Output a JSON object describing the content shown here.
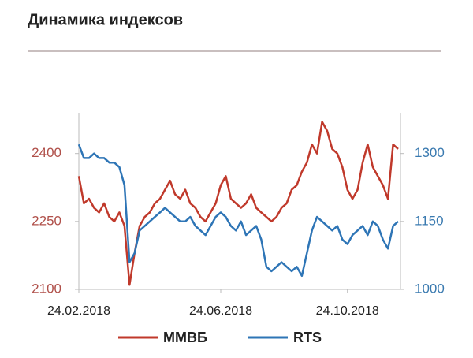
{
  "chart_data": {
    "type": "line",
    "title": "Динамика индексов",
    "categories": [
      "24.02.2018",
      null,
      null,
      null,
      null,
      null,
      null,
      null,
      null,
      null,
      null,
      null,
      null,
      null,
      null,
      null,
      null,
      null,
      null,
      null,
      null,
      null,
      null,
      null,
      null,
      null,
      null,
      null,
      "24.06.2018",
      null,
      null,
      null,
      null,
      null,
      null,
      null,
      null,
      null,
      null,
      null,
      null,
      null,
      null,
      null,
      null,
      null,
      null,
      null,
      null,
      null,
      null,
      null,
      null,
      "24.10.2018",
      null,
      null,
      null,
      null,
      null,
      null,
      null,
      null,
      null,
      null
    ],
    "ylim": [
      2100,
      2490
    ],
    "yticks": [
      2100,
      2250,
      2400
    ],
    "y2lim": [
      1000,
      1390
    ],
    "y2ticks": [
      1000,
      1150,
      1300
    ],
    "y_color": "#b0504a",
    "y2_color": "#3a7ab0",
    "series": [
      {
        "name": "ММВБ",
        "color": "#c0392b",
        "values": [
          2350,
          2290,
          2300,
          2280,
          2270,
          2290,
          2260,
          2250,
          2270,
          2240,
          2110,
          2180,
          2240,
          2260,
          2270,
          2290,
          2300,
          2320,
          2340,
          2310,
          2300,
          2320,
          2290,
          2280,
          2260,
          2250,
          2270,
          2290,
          2330,
          2350,
          2300,
          2290,
          2280,
          2290,
          2310,
          2280,
          2270,
          2260,
          2250,
          2260,
          2280,
          2290,
          2320,
          2330,
          2360,
          2380,
          2420,
          2400,
          2470,
          2450,
          2410,
          2400,
          2370,
          2320,
          2300,
          2320,
          2380,
          2420,
          2370,
          2350,
          2330,
          2300,
          2420,
          2410
        ]
      },
      {
        "name": "RTS",
        "color": "#2e75b6",
        "axis": "y2",
        "values": [
          1320,
          1290,
          1290,
          1300,
          1290,
          1290,
          1280,
          1280,
          1270,
          1230,
          1060,
          1080,
          1130,
          1140,
          1150,
          1160,
          1170,
          1180,
          1170,
          1160,
          1150,
          1150,
          1160,
          1140,
          1130,
          1120,
          1140,
          1160,
          1170,
          1160,
          1140,
          1130,
          1150,
          1120,
          1130,
          1140,
          1110,
          1050,
          1040,
          1050,
          1060,
          1050,
          1040,
          1050,
          1030,
          1080,
          1130,
          1160,
          1150,
          1140,
          1130,
          1140,
          1110,
          1100,
          1120,
          1130,
          1140,
          1120,
          1150,
          1140,
          1110,
          1090,
          1140,
          1150
        ]
      }
    ]
  }
}
